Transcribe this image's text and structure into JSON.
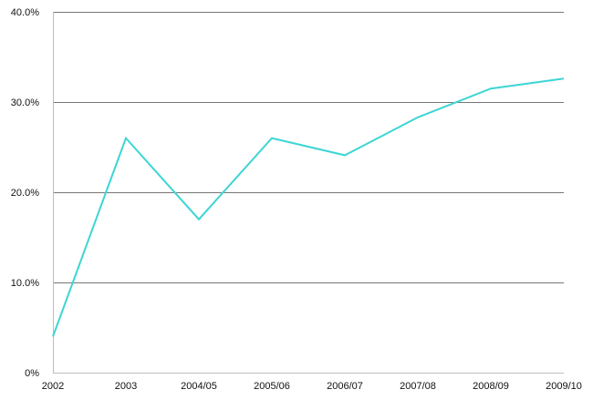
{
  "chart_data": {
    "type": "line",
    "title": "",
    "xlabel": "",
    "ylabel": "",
    "categories": [
      "2002",
      "2003",
      "2004/05",
      "2005/06",
      "2006/07",
      "2007/08",
      "2008/09",
      "2009/10"
    ],
    "series": [
      {
        "values": [
          4.0,
          26.0,
          17.0,
          26.0,
          24.1,
          28.3,
          31.5,
          32.6
        ],
        "color": "#3dd5d5"
      }
    ],
    "ylim": [
      0,
      40
    ],
    "y_ticks": [
      0,
      10,
      20,
      30,
      40
    ],
    "y_tick_labels": [
      "0%",
      "10.0%",
      "20.0%",
      "30.0%",
      "40.0%"
    ],
    "grid": true,
    "legend": "none"
  }
}
